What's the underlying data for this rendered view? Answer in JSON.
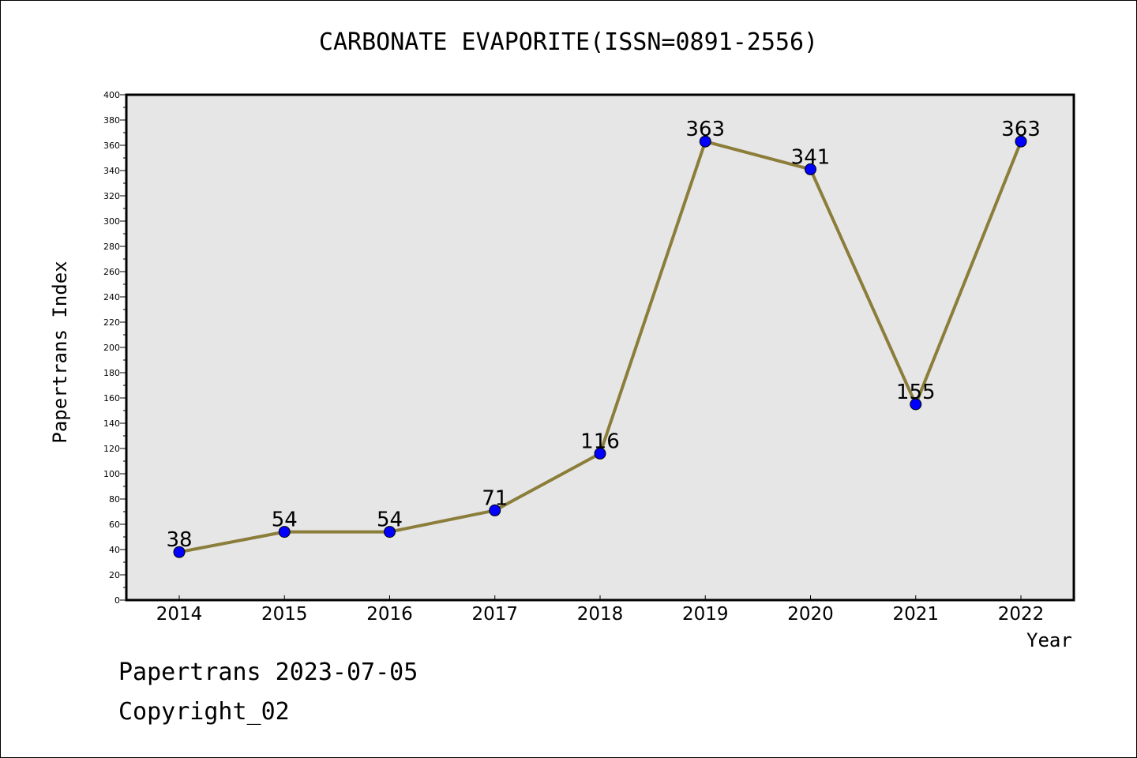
{
  "chart_data": {
    "type": "line",
    "title": "CARBONATE EVAPORITE(ISSN=0891-2556)",
    "xlabel": "Year",
    "ylabel": "Papertrans Index",
    "categories": [
      "2014",
      "2015",
      "2016",
      "2017",
      "2018",
      "2019",
      "2020",
      "2021",
      "2022"
    ],
    "values": [
      38,
      54,
      54,
      71,
      116,
      363,
      341,
      155,
      363
    ],
    "ylim": [
      0,
      400
    ],
    "yticks": [
      0,
      20,
      40,
      60,
      80,
      100,
      120,
      140,
      160,
      180,
      200,
      220,
      240,
      260,
      280,
      300,
      320,
      340,
      360,
      380,
      400
    ],
    "grid": false,
    "colors": {
      "line": "#8B7D3A",
      "marker": "#0000FF",
      "plot_bg": "#E6E6E6"
    }
  },
  "footer": {
    "line1": "Papertrans 2023-07-05",
    "line2": "Copyright_02"
  }
}
